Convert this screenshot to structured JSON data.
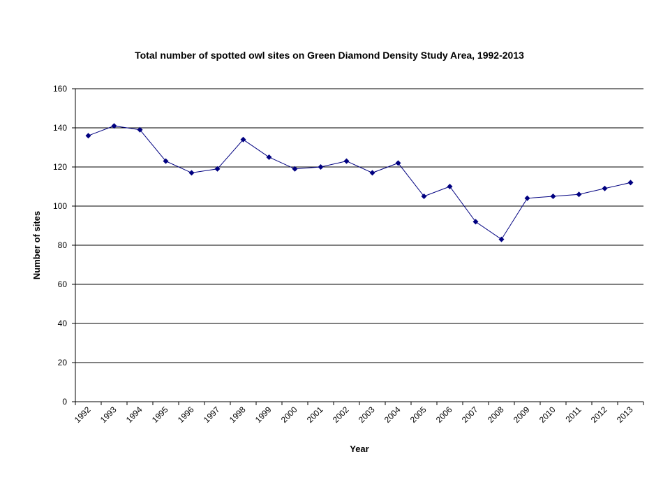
{
  "chart_data": {
    "type": "line",
    "title": "Total number of spotted owl sites on Green Diamond Density Study Area, 1992-2013",
    "xlabel": "Year",
    "ylabel": "Number of sites",
    "ylim": [
      0,
      160
    ],
    "yticks": [
      0,
      20,
      40,
      60,
      80,
      100,
      120,
      140,
      160
    ],
    "grid": true,
    "legend": "none",
    "categories": [
      "1992",
      "1993",
      "1994",
      "1995",
      "1996",
      "1997",
      "1998",
      "1999",
      "2000",
      "2001",
      "2002",
      "2003",
      "2004",
      "2005",
      "2006",
      "2007",
      "2008",
      "2009",
      "2010",
      "2011",
      "2012",
      "2013"
    ],
    "series": [
      {
        "color": "#000080",
        "values": [
          136,
          141,
          139,
          123,
          117,
          119,
          134,
          125,
          119,
          120,
          123,
          117,
          122,
          105,
          110,
          92,
          83,
          104,
          105,
          106,
          109,
          112
        ]
      }
    ]
  }
}
